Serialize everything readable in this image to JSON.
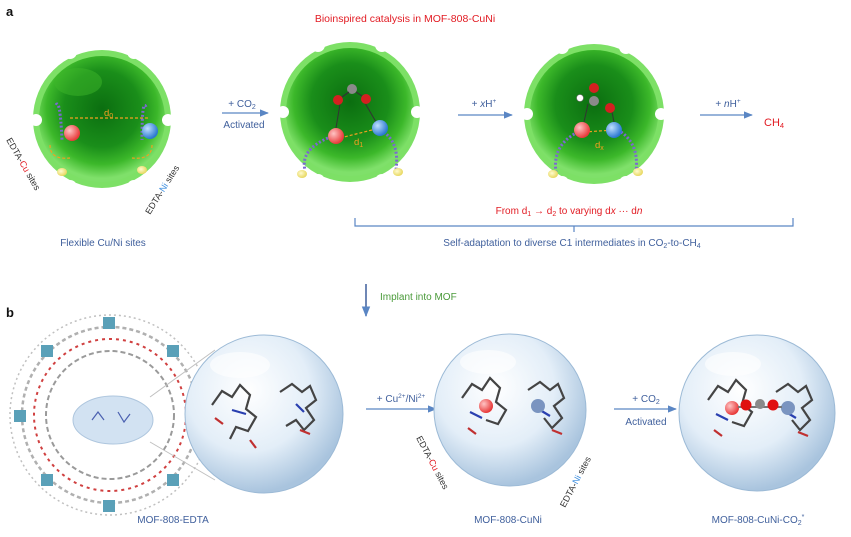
{
  "panels": {
    "a": "a",
    "b": "b"
  },
  "header": {
    "title": "Bioinspired catalysis in MOF-808-CuNi"
  },
  "panel_a": {
    "sphere1": {
      "distance": "d",
      "distance_sub": "0",
      "cu_label_pre": "EDTA-",
      "cu_label_metal": "Cu",
      "cu_label_post": " sites",
      "ni_label_pre": "EDTA-",
      "ni_label_metal": "Ni",
      "ni_label_post": " sites",
      "caption": "Flexible Cu/Ni sites"
    },
    "arrow1": {
      "top": "+ CO",
      "top_sub": "2",
      "bottom": "Activated"
    },
    "sphere2": {
      "distance": "d",
      "distance_sub": "1"
    },
    "arrow2": {
      "top_pre": "+ ",
      "top_var": "x",
      "top_post": "H",
      "top_sup": "+"
    },
    "sphere3": {
      "distance": "d",
      "distance_sub": "x"
    },
    "arrow3": {
      "top_pre": "+ ",
      "top_var": "n",
      "top_post": "H",
      "top_sup": "+"
    },
    "product": {
      "text": "CH",
      "sub": "4"
    },
    "range": {
      "p1": "From d",
      "s1": "1",
      "p2": " → d",
      "s2": "2",
      "p3": " to varying d",
      "v1": "x",
      "p4": " ··· d",
      "v2": "n"
    },
    "summary": {
      "p1": "Self-adaptation to diverse C1 intermediates in CO",
      "s1": "2",
      "p2": "-to-CH",
      "s2": "4"
    }
  },
  "transition": {
    "label": "Implant into MOF"
  },
  "panel_b": {
    "mof": {
      "caption": "MOF-808-EDTA"
    },
    "arrow1": {
      "pre": "+ Cu",
      "sup1": "2+",
      "mid": "/Ni",
      "sup2": "2+"
    },
    "sphere2": {
      "caption": "MOF-808-CuNi",
      "cu_label_pre": "EDTA-",
      "cu_label_metal": "Cu",
      "cu_label_post": " sites",
      "ni_label_pre": "EDTA-",
      "ni_label_metal": "Ni",
      "ni_label_post": " sites"
    },
    "arrow2": {
      "top": "+ CO",
      "top_sub": "2",
      "bottom": "Activated"
    },
    "sphere3": {
      "caption_pre": "MOF-808-CuNi-CO",
      "caption_sub": "2",
      "caption_sup": "*"
    }
  },
  "colors": {
    "sphere_green": "#6ccf52",
    "sphere_green_dark": "#34a81e",
    "cu_red": "#ff5a5a",
    "ni_blue": "#3e8fe0",
    "text_blue": "#3f5f9c",
    "text_red": "#e21b23",
    "arrow_blue": "#5a86c4"
  }
}
